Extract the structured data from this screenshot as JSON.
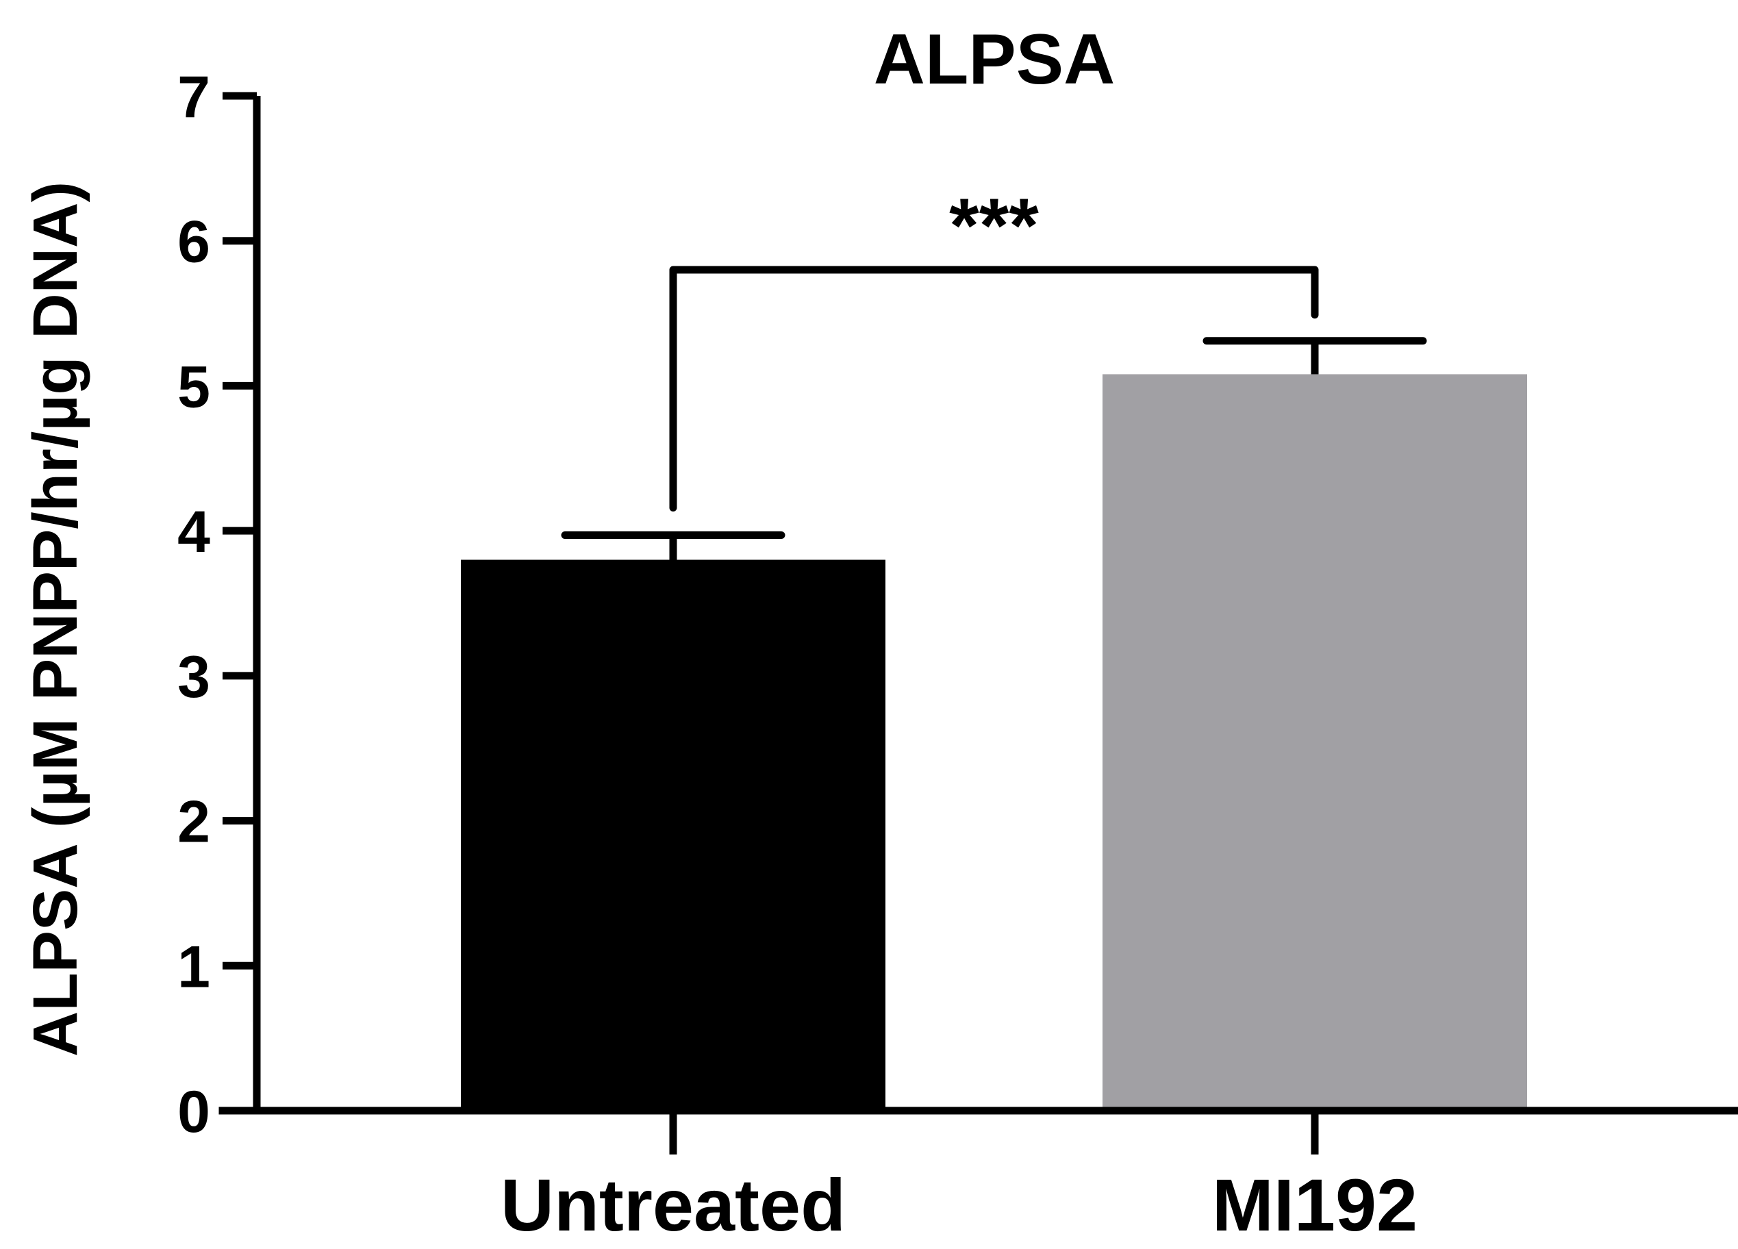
{
  "chart_data": {
    "type": "bar",
    "title": "ALPSA",
    "ylabel": "ALPSA (µM PNPP/hr/µg DNA)",
    "xlabel": "",
    "categories": [
      "Untreated",
      "MI192"
    ],
    "values": [
      3.8,
      5.08
    ],
    "errors": [
      0.17,
      0.23
    ],
    "colors": [
      "#000000",
      "#a1a0a4"
    ],
    "ylim": [
      0,
      7
    ],
    "yticks": [
      0,
      1,
      2,
      3,
      4,
      5,
      6,
      7
    ],
    "ytick_labels": [
      "0",
      "1",
      "2",
      "3",
      "4",
      "5",
      "6",
      "7"
    ],
    "grid": false,
    "legend": "none",
    "significance": {
      "between": [
        "Untreated",
        "MI192"
      ],
      "label": "***",
      "level": 5.8
    }
  }
}
